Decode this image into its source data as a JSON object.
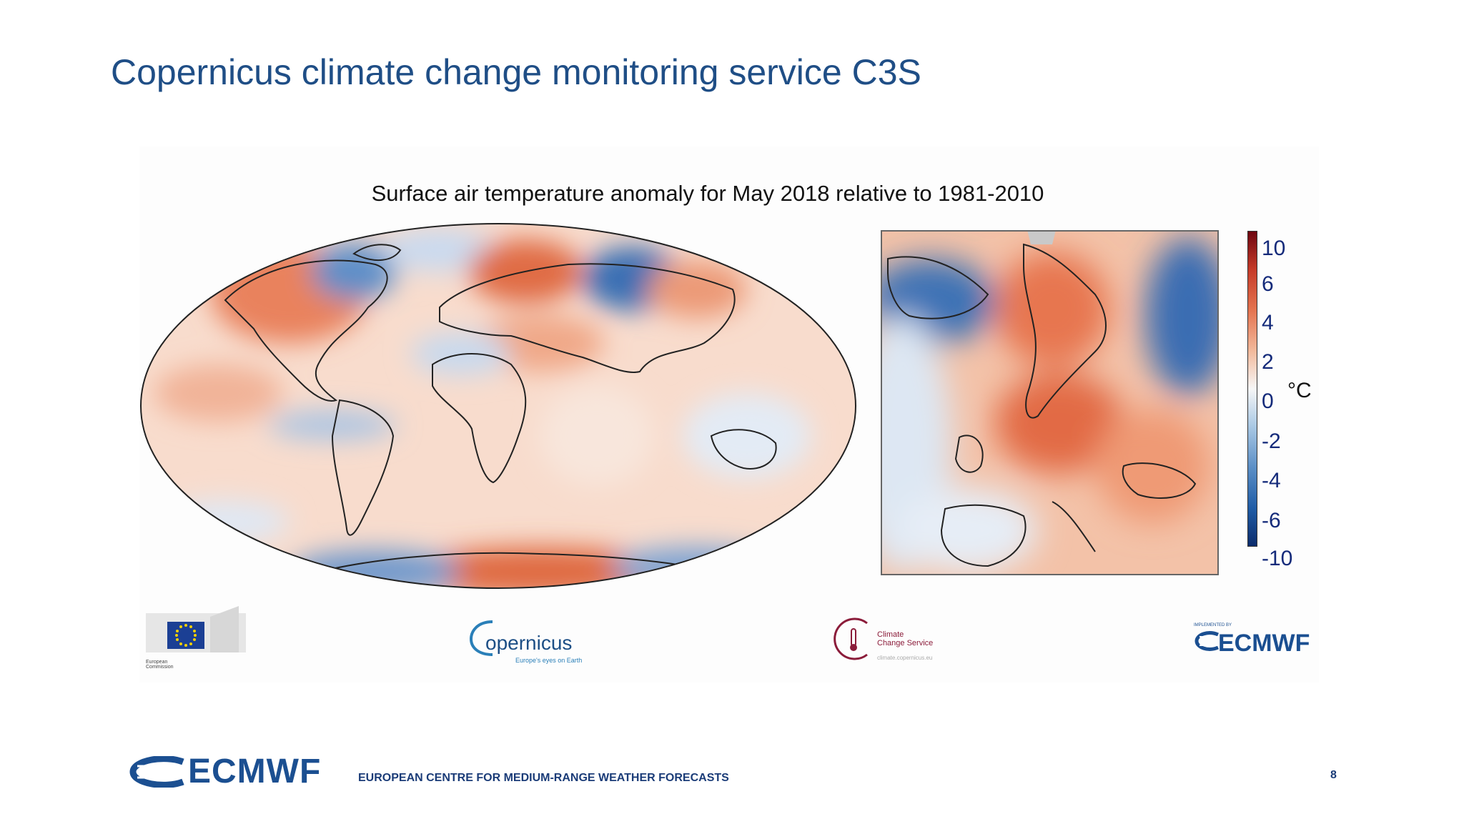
{
  "slide": {
    "title": "Copernicus climate change monitoring service C3S",
    "page_number": "8",
    "footer_org": "EUROPEAN CENTRE FOR MEDIUM-RANGE WEATHER FORECASTS",
    "footer_logo": "ECMWF"
  },
  "figure": {
    "title": "Surface air temperature anomaly for May 2018 relative to 1981-2010",
    "colorbar": {
      "ticks": [
        "10",
        "6",
        "4",
        "2",
        "0",
        "-2",
        "-4",
        "-6",
        "-10"
      ],
      "unit": "°C"
    }
  },
  "logos": {
    "ec": {
      "caption_line1": "European",
      "caption_line2": "Commission"
    },
    "copernicus": {
      "name": "opernicus",
      "tagline": "Europe's eyes on Earth"
    },
    "c3s": {
      "line1": "Climate",
      "line2": "Change Service",
      "url": "climate.copernicus.eu"
    },
    "ecmwf": {
      "pre": "IMPLEMENTED BY",
      "name": "ECMWF"
    }
  },
  "colors": {
    "title": "#1f4e86",
    "warm": "#e4734f",
    "cold": "#1f5ca6",
    "ecmwf_blue": "#1b4f91"
  }
}
